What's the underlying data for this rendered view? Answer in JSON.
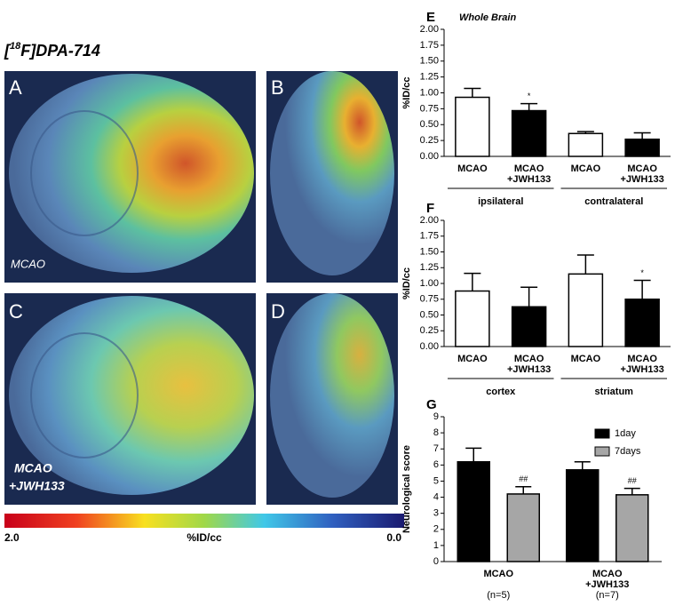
{
  "figure": {
    "tracer": {
      "prefix": "[",
      "superscript": "18",
      "suffix": "F]DPA-714"
    },
    "images": [
      {
        "label": "A",
        "caption": [
          "MCAO"
        ]
      },
      {
        "label": "B"
      },
      {
        "label": "C",
        "caption": [
          "MCAO",
          "+JWH133"
        ]
      },
      {
        "label": "D"
      }
    ],
    "colorbar": {
      "min_label": "2.0",
      "title": "%ID/cc",
      "max_label": "0.0"
    }
  },
  "chart_data": [
    {
      "type": "bar",
      "panel_label": "E",
      "title": "Whole Brain",
      "y_label": "%ID/cc",
      "categories": [
        [
          "MCAO"
        ],
        [
          "MCAO",
          "+JWH133"
        ],
        [
          "MCAO"
        ],
        [
          "MCAO",
          "+JWH133"
        ]
      ],
      "groups": [
        "ipsilateral",
        "contralateral"
      ],
      "values": [
        0.93,
        0.72,
        0.36,
        0.27
      ],
      "errors": [
        0.14,
        0.11,
        0.03,
        0.1
      ],
      "colors": [
        "#ffffff",
        "#000000",
        "#ffffff",
        "#000000"
      ],
      "annotations": [
        null,
        "*",
        null,
        null
      ],
      "ylim": [
        0,
        2
      ],
      "yticks": [
        {
          "value": 0,
          "label": "0.00"
        },
        {
          "value": 0.25,
          "label": "0.25"
        },
        {
          "value": 0.5,
          "label": "0.50"
        },
        {
          "value": 0.75,
          "label": "0.75"
        },
        {
          "value": 1,
          "label": "1.00"
        },
        {
          "value": 1.25,
          "label": "1.25"
        },
        {
          "value": 1.5,
          "label": "1.50"
        },
        {
          "value": 1.75,
          "label": "1.75"
        },
        {
          "value": 2,
          "label": "2.00"
        }
      ]
    },
    {
      "type": "bar",
      "panel_label": "F",
      "y_label": "%ID/cc",
      "categories": [
        [
          "MCAO"
        ],
        [
          "MCAO",
          "+JWH133"
        ],
        [
          "MCAO"
        ],
        [
          "MCAO",
          "+JWH133"
        ]
      ],
      "groups": [
        "cortex",
        "striatum"
      ],
      "values": [
        0.88,
        0.63,
        1.15,
        0.75
      ],
      "errors": [
        0.28,
        0.31,
        0.3,
        0.3
      ],
      "colors": [
        "#ffffff",
        "#000000",
        "#ffffff",
        "#000000"
      ],
      "annotations": [
        null,
        null,
        null,
        "*"
      ],
      "ylim": [
        0,
        2
      ],
      "yticks": [
        {
          "value": 0,
          "label": "0.00"
        },
        {
          "value": 0.25,
          "label": "0.25"
        },
        {
          "value": 0.5,
          "label": "0.50"
        },
        {
          "value": 0.75,
          "label": "0.75"
        },
        {
          "value": 1,
          "label": "1.00"
        },
        {
          "value": 1.25,
          "label": "1.25"
        },
        {
          "value": 1.5,
          "label": "1.50"
        },
        {
          "value": 1.75,
          "label": "1.75"
        },
        {
          "value": 2,
          "label": "2.00"
        }
      ]
    },
    {
      "type": "grouped_bar",
      "panel_label": "G",
      "y_label": "Neurological score",
      "categories": [
        [
          "MCAO"
        ],
        [
          "MCAO",
          "+JWH133"
        ]
      ],
      "notes": [
        "(n=5)",
        "(n=7)"
      ],
      "series": [
        {
          "name": "1day",
          "color": "#000000",
          "values": [
            6.2,
            5.7
          ],
          "errors": [
            0.85,
            0.5
          ]
        },
        {
          "name": "7days",
          "color": "#a6a6a6",
          "values": [
            4.2,
            4.15
          ],
          "errors": [
            0.45,
            0.4
          ],
          "annotations": [
            "##",
            "##"
          ]
        }
      ],
      "legend": "upper right",
      "ylim": [
        0,
        9
      ],
      "yticks": [
        0,
        1,
        2,
        3,
        4,
        5,
        6,
        7,
        8,
        9
      ]
    }
  ]
}
